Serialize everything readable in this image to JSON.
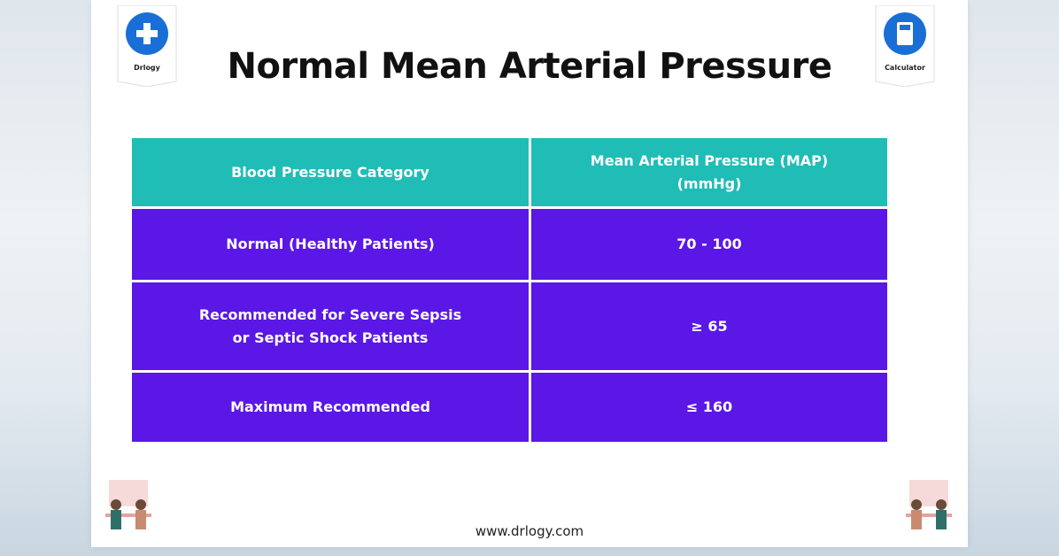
{
  "header": {
    "title": "Normal Mean Arterial Pressure",
    "left_badge": "Drlogy",
    "right_badge": "Calculator"
  },
  "table": {
    "columns": [
      "Blood Pressure Category",
      "Mean Arterial Pressure (MAP) (mmHg)"
    ],
    "rows": [
      [
        "Normal (Healthy Patients)",
        "70 - 100"
      ],
      [
        "Recommended for Severe Sepsis or Septic Shock Patients",
        "≥ 65"
      ],
      [
        "Maximum Recommended",
        "≤ 160"
      ]
    ]
  },
  "footer": {
    "website": "www.drlogy.com"
  }
}
